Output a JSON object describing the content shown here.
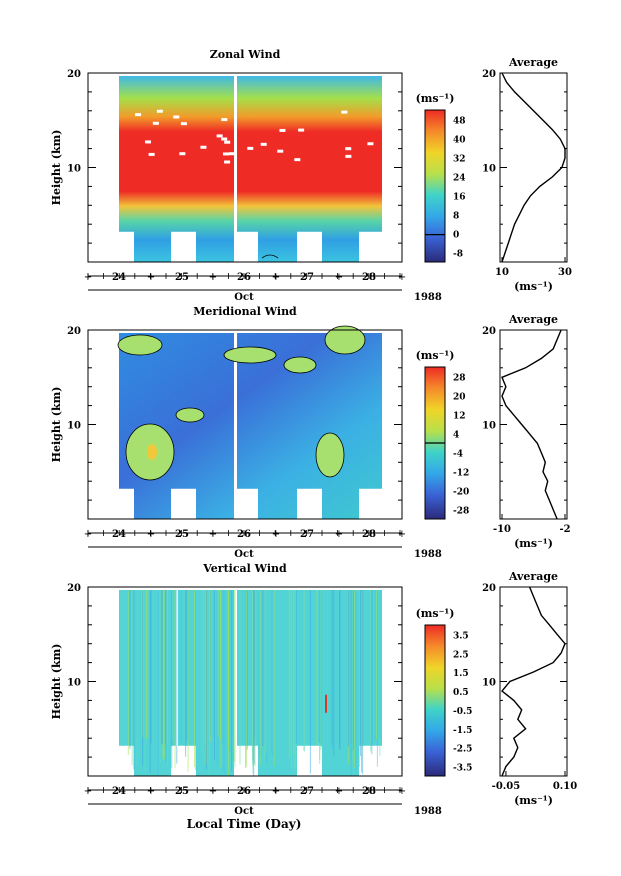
{
  "chart_data": [
    {
      "type": "heatmap",
      "title": "Zonal Wind",
      "ylabel": "Height (km)",
      "ylim": [
        0,
        20
      ],
      "yticks": [
        10,
        20
      ],
      "xticks": [
        "24",
        "25",
        "26",
        "27",
        "28"
      ],
      "month_label": "Oct",
      "year_label": "1988",
      "colorbar": {
        "unit": "(ms⁻¹)",
        "labels": [
          "48",
          "40",
          "32",
          "24",
          "16",
          "8",
          "0",
          "-8"
        ],
        "zero_level": 0
      },
      "profile": {
        "title": "Average",
        "xlabel": "(ms⁻¹)",
        "xticks": [
          "10",
          "30"
        ],
        "ylim": [
          0,
          20
        ],
        "yticks": [
          10,
          20
        ],
        "points": [
          [
            10,
            0
          ],
          [
            11,
            1
          ],
          [
            12,
            2
          ],
          [
            13,
            3
          ],
          [
            14,
            4
          ],
          [
            15.5,
            5
          ],
          [
            17,
            6
          ],
          [
            19,
            7
          ],
          [
            22,
            8
          ],
          [
            26,
            9
          ],
          [
            29,
            10
          ],
          [
            30,
            11
          ],
          [
            30,
            12
          ],
          [
            28.5,
            13
          ],
          [
            26,
            14
          ],
          [
            23,
            15
          ],
          [
            20,
            16
          ],
          [
            17,
            17
          ],
          [
            14,
            18
          ],
          [
            11.5,
            19
          ],
          [
            10,
            20
          ]
        ]
      }
    },
    {
      "type": "heatmap",
      "title": "Meridional Wind",
      "ylabel": "Height (km)",
      "ylim": [
        0,
        20
      ],
      "yticks": [
        10,
        20
      ],
      "xticks": [
        "24",
        "25",
        "26",
        "27",
        "28"
      ],
      "month_label": "Oct",
      "year_label": "1988",
      "colorbar": {
        "unit": "(ms⁻¹)",
        "labels": [
          "28",
          "20",
          "12",
          "4",
          "-4",
          "-12",
          "-20",
          "-28"
        ],
        "zero_level": 0
      },
      "profile": {
        "title": "Average",
        "xlabel": "(ms⁻¹)",
        "xticks": [
          "-10",
          "-2"
        ],
        "ylim": [
          0,
          20
        ],
        "yticks": [
          10,
          20
        ],
        "points": [
          [
            -3,
            0
          ],
          [
            -3.5,
            1
          ],
          [
            -4,
            2
          ],
          [
            -4.5,
            3
          ],
          [
            -4.2,
            4
          ],
          [
            -4.8,
            5
          ],
          [
            -4.5,
            6
          ],
          [
            -5,
            7
          ],
          [
            -5.5,
            8
          ],
          [
            -6.5,
            9
          ],
          [
            -7.5,
            10
          ],
          [
            -8.5,
            11
          ],
          [
            -9.5,
            12
          ],
          [
            -10,
            13
          ],
          [
            -9.5,
            14
          ],
          [
            -10,
            15
          ],
          [
            -7,
            16
          ],
          [
            -5,
            17
          ],
          [
            -3.5,
            18
          ],
          [
            -3,
            19
          ],
          [
            -2.5,
            20
          ]
        ]
      }
    },
    {
      "type": "heatmap",
      "title": "Vertical Wind",
      "ylabel": "Height (km)",
      "xlabel": "Local Time (Day)",
      "ylim": [
        0,
        20
      ],
      "yticks": [
        10,
        20
      ],
      "xticks": [
        "24",
        "25",
        "26",
        "27",
        "28"
      ],
      "month_label": "Oct",
      "year_label": "1988",
      "colorbar": {
        "unit": "(ms⁻¹)",
        "labels": [
          "3.5",
          "2.5",
          "1.5",
          "0.5",
          "-0.5",
          "-1.5",
          "-2.5",
          "-3.5"
        ]
      },
      "profile": {
        "title": "Average",
        "xlabel": "(ms⁻¹)",
        "xticks": [
          "-0.05",
          "0.10"
        ],
        "ylim": [
          0,
          20
        ],
        "yticks": [
          10,
          20
        ],
        "points": [
          [
            -0.06,
            0
          ],
          [
            -0.05,
            1
          ],
          [
            -0.03,
            2
          ],
          [
            -0.02,
            3
          ],
          [
            -0.03,
            4
          ],
          [
            0,
            5
          ],
          [
            -0.02,
            6
          ],
          [
            -0.01,
            7
          ],
          [
            -0.03,
            8
          ],
          [
            -0.06,
            9
          ],
          [
            -0.04,
            10
          ],
          [
            0.02,
            11
          ],
          [
            0.07,
            12
          ],
          [
            0.09,
            13
          ],
          [
            0.1,
            14
          ],
          [
            0.08,
            15
          ],
          [
            0.06,
            16
          ],
          [
            0.04,
            17
          ],
          [
            0.03,
            18
          ],
          [
            0.02,
            19
          ],
          [
            0.01,
            20
          ]
        ]
      }
    }
  ]
}
